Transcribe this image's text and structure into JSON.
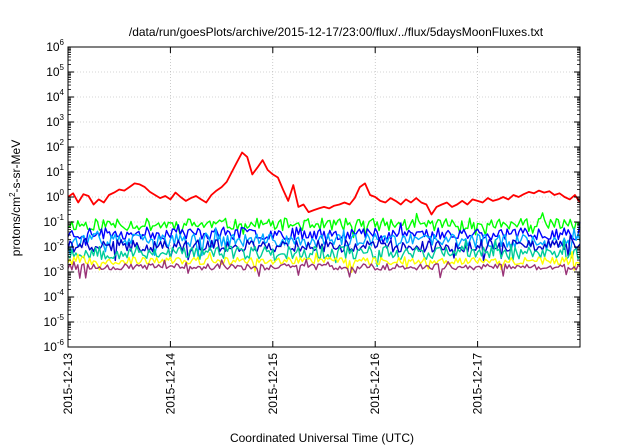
{
  "chart_data": {
    "type": "line",
    "title": "/data/run/goesPlots/archive/2015-12-17/23:00/flux/../flux/5daysMoonFluxes.txt",
    "xlabel": "Coordinated Universal Time (UTC)",
    "ylabel_parts": {
      "pre": "protons/cm",
      "sup": "2",
      "post": "-s-sr-MeV"
    },
    "yscale": "log",
    "ylim": [
      1e-06,
      1000000.0
    ],
    "xlim": [
      "2015-12-13",
      "2015-12-18"
    ],
    "grid": true,
    "x_ticks": [
      "2015-12-13",
      "2015-12-14",
      "2015-12-15",
      "2015-12-16",
      "2015-12-17"
    ],
    "y_ticks": [
      {
        "base": "10",
        "exp": "6"
      },
      {
        "base": "10",
        "exp": "5"
      },
      {
        "base": "10",
        "exp": "4"
      },
      {
        "base": "10",
        "exp": "3"
      },
      {
        "base": "10",
        "exp": "2"
      },
      {
        "base": "10",
        "exp": "1"
      },
      {
        "base": "10",
        "exp": "0"
      },
      {
        "base": "10",
        "exp": "-1"
      },
      {
        "base": "10",
        "exp": "-2"
      },
      {
        "base": "10",
        "exp": "-3"
      },
      {
        "base": "10",
        "exp": "-4"
      },
      {
        "base": "10",
        "exp": "-5"
      },
      {
        "base": "10",
        "exp": "-6"
      }
    ],
    "series": [
      {
        "color": "#ff0000",
        "x": [
          0.0,
          0.05,
          0.1,
          0.15,
          0.2,
          0.25,
          0.3,
          0.35,
          0.4,
          0.45,
          0.5,
          0.55,
          0.6,
          0.65,
          0.7,
          0.75,
          0.8,
          0.85,
          0.9,
          0.95,
          1.0,
          1.05,
          1.1,
          1.15,
          1.2,
          1.25,
          1.3,
          1.35,
          1.4,
          1.45,
          1.5,
          1.55,
          1.6,
          1.65,
          1.7,
          1.75,
          1.8,
          1.85,
          1.9,
          1.95,
          2.0,
          2.05,
          2.1,
          2.15,
          2.2,
          2.25,
          2.3,
          2.35,
          2.4,
          2.45,
          2.5,
          2.55,
          2.6,
          2.65,
          2.7,
          2.75,
          2.8,
          2.85,
          2.9,
          2.95,
          3.0,
          3.05,
          3.1,
          3.15,
          3.2,
          3.25,
          3.3,
          3.35,
          3.4,
          3.45,
          3.5,
          3.55,
          3.6,
          3.65,
          3.7,
          3.75,
          3.8,
          3.85,
          3.9,
          3.95,
          4.0,
          4.05,
          4.1,
          4.15,
          4.2,
          4.25,
          4.3,
          4.35,
          4.4,
          4.45,
          4.5,
          4.55,
          4.6,
          4.65,
          4.7,
          4.75,
          4.8,
          4.85,
          4.9,
          4.95,
          5.0
        ],
        "values": [
          1.0,
          1.4,
          0.6,
          1.3,
          1.1,
          0.5,
          0.8,
          0.6,
          1.2,
          1.5,
          2.0,
          1.8,
          2.5,
          3.5,
          3.2,
          2.5,
          1.6,
          1.2,
          0.9,
          1.1,
          0.8,
          1.5,
          1.0,
          0.7,
          0.9,
          1.1,
          0.8,
          0.6,
          1.2,
          1.8,
          2.5,
          4.0,
          10.0,
          25.0,
          60.0,
          40.0,
          8.0,
          15.0,
          30.0,
          12.0,
          8.0,
          6.0,
          2.0,
          0.7,
          3.0,
          0.4,
          0.5,
          0.25,
          0.3,
          0.35,
          0.4,
          0.35,
          0.45,
          0.5,
          0.6,
          0.5,
          0.9,
          2.5,
          3.5,
          1.2,
          1.0,
          0.7,
          0.6,
          0.9,
          0.7,
          0.5,
          0.8,
          0.6,
          0.9,
          0.6,
          0.5,
          0.2,
          0.4,
          0.5,
          0.6,
          0.4,
          0.5,
          0.7,
          0.5,
          0.8,
          0.7,
          0.6,
          0.9,
          0.7,
          0.8,
          1.0,
          0.8,
          1.2,
          1.0,
          1.3,
          1.6,
          1.4,
          1.8,
          1.5,
          1.7,
          1.2,
          1.4,
          1.0,
          0.8,
          1.2,
          0.6
        ]
      },
      {
        "color": "#00ff00",
        "base": 0.08,
        "jitter": 0.5,
        "seed": 11
      },
      {
        "color": "#0000ff",
        "base": 0.035,
        "jitter": 0.5,
        "seed": 23
      },
      {
        "color": "#00aaff",
        "base": 0.018,
        "jitter": 0.55,
        "seed": 37
      },
      {
        "color": "#0000cc",
        "base": 0.011,
        "jitter": 0.5,
        "seed": 41
      },
      {
        "color": "#00cc99",
        "base": 0.006,
        "jitter": 0.55,
        "seed": 53
      },
      {
        "color": "#ffff00",
        "base": 0.0028,
        "jitter": 0.3,
        "seed": 67
      },
      {
        "color": "#993377",
        "base": 0.0016,
        "jitter": 0.25,
        "seed": 79
      }
    ]
  }
}
